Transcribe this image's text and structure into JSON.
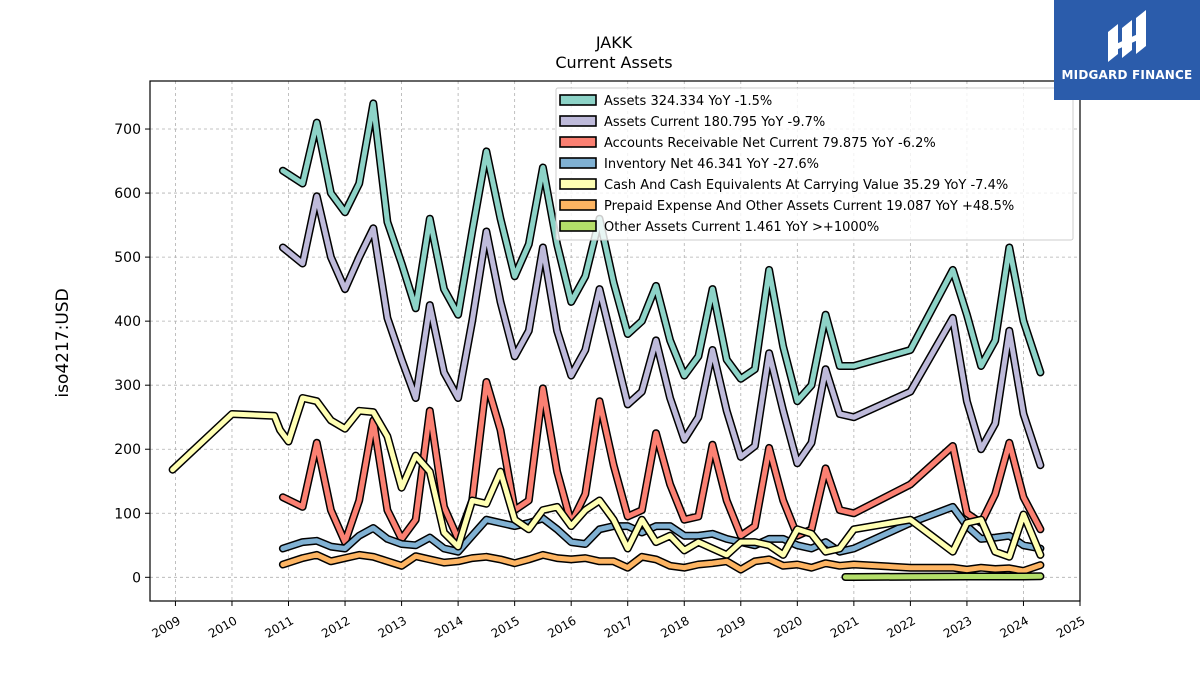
{
  "logo": {
    "text": "MIDGARD FINANCE",
    "background": "#2b5cab"
  },
  "chart_data": {
    "type": "line",
    "title": "JAKK",
    "subtitle": "Current  Assets",
    "ylabel": "iso4217:USD",
    "xlim": [
      2008.55,
      2025.0
    ],
    "ylim": [
      -37,
      775
    ],
    "x_ticks": [
      "2009",
      "2010",
      "2011",
      "2012",
      "2013",
      "2014",
      "2015",
      "2016",
      "2017",
      "2018",
      "2019",
      "2020",
      "2021",
      "2022",
      "2023",
      "2024",
      "2025"
    ],
    "y_ticks": [
      0,
      100,
      200,
      300,
      400,
      500,
      600,
      700
    ],
    "grid": true,
    "legend_position": "top-right",
    "series": [
      {
        "name": "Assets",
        "legend": "Assets  324.334 YoY -1.5%",
        "color": "#8dd3c7",
        "x": [
          2010.9,
          2011.25,
          2011.5,
          2011.75,
          2012.0,
          2012.25,
          2012.5,
          2012.75,
          2013.0,
          2013.25,
          2013.5,
          2013.75,
          2014.0,
          2014.25,
          2014.5,
          2014.75,
          2015.0,
          2015.25,
          2015.5,
          2015.75,
          2016.0,
          2016.25,
          2016.5,
          2016.75,
          2017.0,
          2017.25,
          2017.5,
          2017.75,
          2018.0,
          2018.25,
          2018.5,
          2018.75,
          2019.0,
          2019.25,
          2019.5,
          2019.75,
          2020.0,
          2020.25,
          2020.5,
          2020.75,
          2021.0,
          2022.0,
          2022.75,
          2023.0,
          2023.25,
          2023.5,
          2023.75,
          2024.0,
          2024.3
        ],
        "y": [
          635,
          615,
          710,
          600,
          570,
          615,
          740,
          555,
          490,
          420,
          560,
          450,
          410,
          540,
          665,
          560,
          470,
          520,
          640,
          520,
          430,
          470,
          560,
          460,
          380,
          400,
          455,
          370,
          315,
          345,
          450,
          340,
          310,
          325,
          480,
          360,
          275,
          300,
          410,
          330,
          330,
          355,
          480,
          410,
          330,
          370,
          515,
          400,
          320
        ]
      },
      {
        "name": "Assets Current",
        "legend": "Assets Current  180.795 YoY -9.7%",
        "color": "#bebada",
        "x": [
          2010.9,
          2011.25,
          2011.5,
          2011.75,
          2012.0,
          2012.25,
          2012.5,
          2012.75,
          2013.0,
          2013.25,
          2013.5,
          2013.75,
          2014.0,
          2014.25,
          2014.5,
          2014.75,
          2015.0,
          2015.25,
          2015.5,
          2015.75,
          2016.0,
          2016.25,
          2016.5,
          2016.75,
          2017.0,
          2017.25,
          2017.5,
          2017.75,
          2018.0,
          2018.25,
          2018.5,
          2018.75,
          2019.0,
          2019.25,
          2019.5,
          2019.75,
          2020.0,
          2020.25,
          2020.5,
          2020.75,
          2021.0,
          2022.0,
          2022.75,
          2023.0,
          2023.25,
          2023.5,
          2023.75,
          2024.0,
          2024.3
        ],
        "y": [
          515,
          490,
          595,
          500,
          450,
          500,
          545,
          405,
          340,
          280,
          425,
          320,
          280,
          400,
          540,
          430,
          345,
          385,
          515,
          385,
          315,
          355,
          450,
          360,
          270,
          290,
          370,
          280,
          215,
          250,
          355,
          260,
          188,
          205,
          350,
          260,
          178,
          210,
          325,
          255,
          250,
          290,
          405,
          275,
          200,
          240,
          385,
          255,
          175
        ]
      },
      {
        "name": "Accounts Receivable Net Current",
        "legend": "Accounts Receivable Net Current  79.875 YoY -6.2%",
        "color": "#fb8072",
        "x": [
          2010.9,
          2011.25,
          2011.5,
          2011.75,
          2012.0,
          2012.25,
          2012.5,
          2012.75,
          2013.0,
          2013.25,
          2013.5,
          2013.75,
          2014.0,
          2014.25,
          2014.5,
          2014.75,
          2015.0,
          2015.25,
          2015.5,
          2015.75,
          2016.0,
          2016.25,
          2016.5,
          2016.75,
          2017.0,
          2017.25,
          2017.5,
          2017.75,
          2018.0,
          2018.25,
          2018.5,
          2018.75,
          2019.0,
          2019.25,
          2019.5,
          2019.75,
          2020.0,
          2020.25,
          2020.5,
          2020.75,
          2021.0,
          2022.0,
          2022.75,
          2023.0,
          2023.25,
          2023.5,
          2023.75,
          2024.0,
          2024.3
        ],
        "y": [
          125,
          110,
          210,
          105,
          55,
          120,
          245,
          105,
          60,
          90,
          260,
          110,
          60,
          120,
          305,
          230,
          105,
          120,
          295,
          165,
          85,
          130,
          275,
          175,
          95,
          105,
          225,
          145,
          90,
          95,
          207,
          120,
          65,
          80,
          202,
          120,
          65,
          75,
          170,
          105,
          100,
          145,
          205,
          100,
          85,
          130,
          210,
          125,
          75
        ]
      },
      {
        "name": "Inventory Net",
        "legend": "Inventory Net  46.341 YoY -27.6%",
        "color": "#80b1d3",
        "x": [
          2010.9,
          2011.25,
          2011.5,
          2011.75,
          2012.0,
          2012.25,
          2012.5,
          2012.75,
          2013.0,
          2013.25,
          2013.5,
          2013.75,
          2014.0,
          2014.25,
          2014.5,
          2014.75,
          2015.0,
          2015.25,
          2015.5,
          2015.75,
          2016.0,
          2016.25,
          2016.5,
          2016.75,
          2017.0,
          2017.25,
          2017.5,
          2017.75,
          2018.0,
          2018.25,
          2018.5,
          2018.75,
          2019.0,
          2019.25,
          2019.5,
          2019.75,
          2020.0,
          2020.25,
          2020.5,
          2020.75,
          2021.0,
          2022.0,
          2022.75,
          2023.0,
          2023.25,
          2023.5,
          2023.75,
          2024.0,
          2024.3
        ],
        "y": [
          45,
          55,
          57,
          48,
          45,
          65,
          77,
          60,
          52,
          50,
          62,
          45,
          40,
          65,
          90,
          85,
          80,
          85,
          92,
          75,
          55,
          52,
          75,
          80,
          80,
          70,
          80,
          80,
          65,
          65,
          68,
          60,
          55,
          50,
          60,
          60,
          50,
          45,
          55,
          40,
          45,
          85,
          110,
          80,
          60,
          62,
          65,
          50,
          45
        ]
      },
      {
        "name": "Cash And Cash Equivalents At Carrying Value",
        "legend": "Cash And Cash Equivalents At Carrying Value  35.29 YoY -7.4%",
        "color": "#ffffb3",
        "x": [
          2008.95,
          2010.0,
          2010.75,
          2010.85,
          2011.0,
          2011.25,
          2011.5,
          2011.75,
          2012.0,
          2012.25,
          2012.5,
          2012.75,
          2013.0,
          2013.25,
          2013.5,
          2013.75,
          2014.0,
          2014.25,
          2014.5,
          2014.75,
          2015.0,
          2015.25,
          2015.5,
          2015.75,
          2016.0,
          2016.25,
          2016.5,
          2016.75,
          2017.0,
          2017.25,
          2017.5,
          2017.75,
          2018.0,
          2018.25,
          2018.5,
          2018.75,
          2019.0,
          2019.25,
          2019.5,
          2019.75,
          2020.0,
          2020.25,
          2020.5,
          2020.75,
          2021.0,
          2022.0,
          2022.75,
          2023.0,
          2023.25,
          2023.5,
          2023.75,
          2024.0,
          2024.3
        ],
        "y": [
          168,
          255,
          252,
          230,
          212,
          280,
          275,
          245,
          232,
          260,
          258,
          220,
          140,
          190,
          165,
          70,
          48,
          120,
          115,
          165,
          90,
          75,
          105,
          110,
          80,
          105,
          120,
          90,
          45,
          90,
          55,
          65,
          42,
          55,
          45,
          35,
          55,
          55,
          50,
          35,
          75,
          68,
          40,
          45,
          75,
          90,
          40,
          85,
          90,
          40,
          32,
          98,
          35
        ]
      },
      {
        "name": "Prepaid Expense And Other Assets Current",
        "legend": "Prepaid Expense And Other Assets Current  19.087 YoY +48.5%",
        "color": "#fdb462",
        "x": [
          2010.9,
          2011.25,
          2011.5,
          2011.75,
          2012.0,
          2012.25,
          2012.5,
          2012.75,
          2013.0,
          2013.25,
          2013.5,
          2013.75,
          2014.0,
          2014.25,
          2014.5,
          2014.75,
          2015.0,
          2015.25,
          2015.5,
          2015.75,
          2016.0,
          2016.25,
          2016.5,
          2016.75,
          2017.0,
          2017.25,
          2017.5,
          2017.75,
          2018.0,
          2018.25,
          2018.5,
          2018.75,
          2019.0,
          2019.25,
          2019.5,
          2019.75,
          2020.0,
          2020.25,
          2020.5,
          2020.75,
          2021.0,
          2022.0,
          2022.75,
          2023.0,
          2023.25,
          2023.5,
          2023.75,
          2024.0,
          2024.3
        ],
        "y": [
          20,
          30,
          35,
          25,
          30,
          35,
          32,
          25,
          18,
          33,
          28,
          23,
          25,
          30,
          32,
          28,
          22,
          28,
          35,
          30,
          28,
          30,
          25,
          25,
          15,
          32,
          28,
          18,
          15,
          20,
          22,
          25,
          12,
          25,
          28,
          18,
          20,
          15,
          22,
          18,
          20,
          15,
          15,
          12,
          15,
          13,
          14,
          10,
          19
        ]
      },
      {
        "name": "Other Assets Current",
        "legend": "Other Assets Current  1.461 YoY >+1000%",
        "color": "#b3de69",
        "x": [
          2020.85,
          2021.0,
          2022.0,
          2023.0,
          2024.0,
          2024.3
        ],
        "y": [
          0.5,
          0.5,
          1.0,
          1.2,
          1.3,
          1.5
        ]
      }
    ]
  }
}
